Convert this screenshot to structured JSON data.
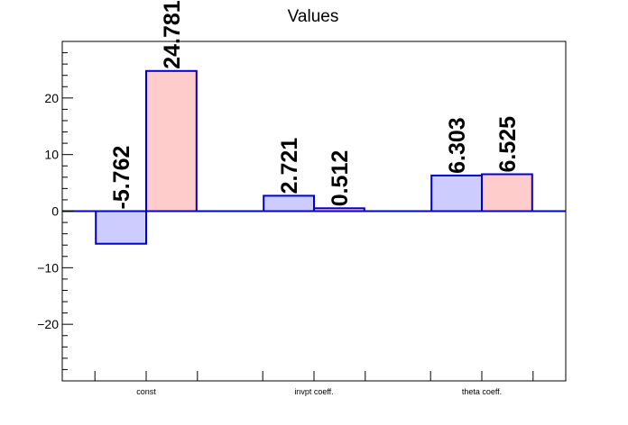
{
  "chart_data": {
    "type": "bar",
    "title": "Values",
    "categories": [
      "const",
      "invpt coeff.",
      "theta coeff."
    ],
    "series": [
      {
        "values": [
          -5.762,
          2.721,
          6.303
        ],
        "color": "#ccccff"
      },
      {
        "values": [
          24.781,
          0.512,
          6.525
        ],
        "color": "#ffcccc"
      }
    ],
    "data_labels": [
      [
        "-5.762",
        "2.721",
        "6.303"
      ],
      [
        "24.781",
        "0.512",
        "6.525"
      ]
    ],
    "bar_edge_color": "#0000cc",
    "zero_line_color": "#0000cc",
    "ylim": [
      -30,
      30
    ],
    "yticks": [
      -20,
      -10,
      0,
      10,
      20
    ],
    "ytick_labels": [
      "−20",
      "−10",
      "0",
      "10",
      "20"
    ],
    "xlabel": "",
    "ylabel": "",
    "grid": false,
    "legend": "none"
  }
}
